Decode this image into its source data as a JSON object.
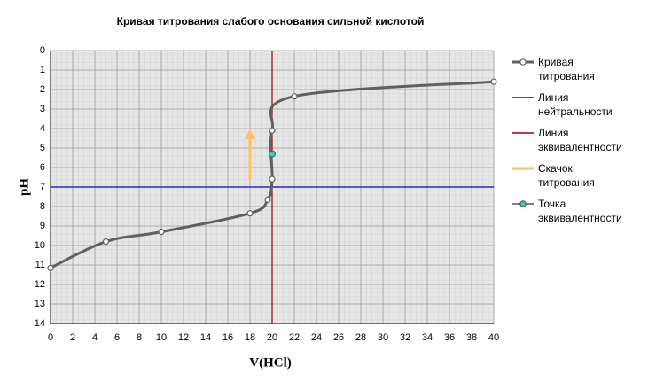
{
  "chart_data": {
    "type": "line",
    "title": "Кривая титрования слабого основания сильной кислотой",
    "x_label": "V(HCl)",
    "y_label": "pH",
    "xlim": [
      0,
      40
    ],
    "xticks": [
      0,
      2,
      4,
      6,
      8,
      10,
      12,
      14,
      16,
      18,
      20,
      22,
      24,
      26,
      28,
      30,
      32,
      34,
      36,
      38,
      40
    ],
    "ylim": [
      0,
      14
    ],
    "y_reversed": true,
    "yticks": [
      0,
      1,
      2,
      3,
      4,
      5,
      6,
      7,
      8,
      9,
      10,
      11,
      12,
      13,
      14
    ],
    "grid": true,
    "legend": "right",
    "series": [
      {
        "name": "Кривая титрования",
        "kind": "curve",
        "color": "#606060",
        "x": [
          0,
          5,
          10,
          18,
          19.6,
          20,
          20,
          22,
          40
        ],
        "values": [
          11.15,
          9.8,
          9.3,
          8.35,
          7.65,
          6.6,
          4.1,
          2.35,
          1.6
        ]
      },
      {
        "name": "Линия нейтральности",
        "kind": "line",
        "color": "#0000cc",
        "x": [
          0,
          40
        ],
        "values": [
          7,
          7
        ]
      },
      {
        "name": "Линия эквивалентности",
        "kind": "line",
        "color": "#990000",
        "x": [
          20,
          20
        ],
        "values": [
          0,
          14
        ]
      },
      {
        "name": "Скачок титрования",
        "kind": "arrow",
        "color": "#ffc060",
        "x": [
          18,
          18
        ],
        "values": [
          6.6,
          4.0
        ]
      },
      {
        "name": "Точка эквивалентности",
        "kind": "point",
        "color": "#33cccc",
        "x": [
          20
        ],
        "values": [
          5.3
        ]
      }
    ]
  }
}
